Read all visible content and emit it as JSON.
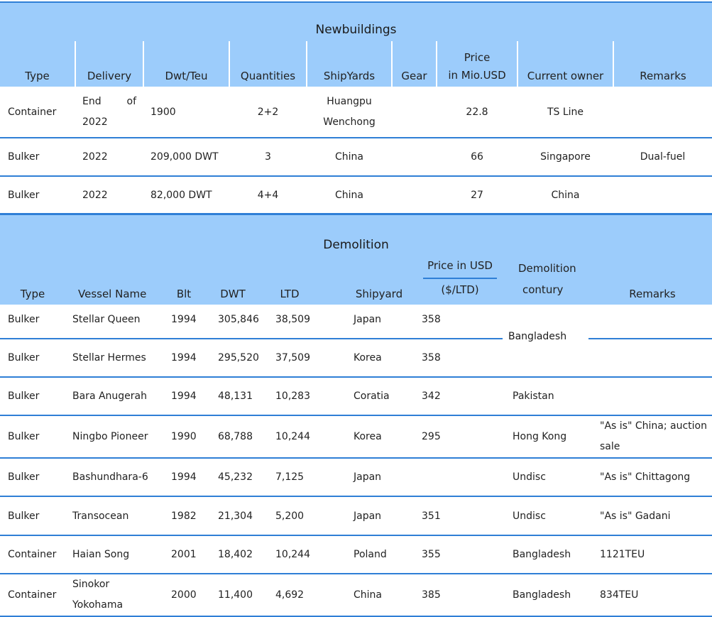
{
  "newbuildings": {
    "title": "Newbuildings",
    "headers": [
      "Type",
      "Delivery",
      "Dwt/Teu",
      "Quantities",
      "ShipYards",
      "Gear",
      "Price",
      "in Mio.USD",
      "Current owner",
      "Remarks"
    ],
    "rows": [
      {
        "type": "Container",
        "delivery_a": "End",
        "delivery_b": "of",
        "delivery_c": "2022",
        "dwt": "1900",
        "qty": "2+2",
        "yard_a": "Huangpu",
        "yard_b": "Wenchong",
        "gear": "",
        "price": "22.8",
        "owner": "TS Line",
        "remarks": ""
      },
      {
        "type": "Bulker",
        "delivery": "2022",
        "dwt": "209,000 DWT",
        "qty": "3",
        "yard": "China",
        "gear": "",
        "price": "66",
        "owner": "Singapore",
        "remarks": "Dual-fuel"
      },
      {
        "type": "Bulker",
        "delivery": "2022",
        "dwt": "82,000 DWT",
        "qty": "4+4",
        "yard": "China",
        "gear": "",
        "price": "27",
        "owner": "China",
        "remarks": ""
      }
    ]
  },
  "demolition": {
    "title": "Demolition",
    "headers": [
      "Type",
      "Vessel Name",
      "Blt",
      "DWT",
      "LTD",
      "Shipyard",
      "Price in USD",
      "($/LTD)",
      "Demolition",
      "contury",
      "Remarks"
    ],
    "merged_country": "Bangladesh",
    "rows": [
      {
        "type": "Bulker",
        "name": "Stellar Queen",
        "blt": "1994",
        "dwt": "305,846",
        "ltd": "38,509",
        "yard": "Japan",
        "price": "358",
        "country": "",
        "remarks": ""
      },
      {
        "type": "Bulker",
        "name": "Stellar Hermes",
        "blt": "1994",
        "dwt": "295,520",
        "ltd": "37,509",
        "yard": "Korea",
        "price": "358",
        "country": "",
        "remarks": ""
      },
      {
        "type": "Bulker",
        "name": "Bara Anugerah",
        "blt": "1994",
        "dwt": "48,131",
        "ltd": "10,283",
        "yard": "Coratia",
        "price": "342",
        "country": "Pakistan",
        "remarks": ""
      },
      {
        "type": "Bulker",
        "name": "Ningbo Pioneer",
        "blt": "1990",
        "dwt": "68,788",
        "ltd": "10,244",
        "yard": "Korea",
        "price": "295",
        "country": "Hong Kong",
        "remarks_a": "\"As is\" China; auction",
        "remarks_b": "sale"
      },
      {
        "type": "Bulker",
        "name": "Bashundhara-6",
        "blt": "1994",
        "dwt": "45,232",
        "ltd": "7,125",
        "yard": "Japan",
        "price": "",
        "country": "Undisc",
        "remarks": "\"As is\" Chittagong"
      },
      {
        "type": "Bulker",
        "name": "Transocean",
        "blt": "1982",
        "dwt": "21,304",
        "ltd": "5,200",
        "yard": "Japan",
        "price": "351",
        "country": "Undisc",
        "remarks": "\"As is\" Gadani"
      },
      {
        "type": "Container",
        "name": "Haian Song",
        "blt": "2001",
        "dwt": "18,402",
        "ltd": "10,244",
        "yard": "Poland",
        "price": "355",
        "country": "Bangladesh",
        "remarks": "1121TEU"
      },
      {
        "type": "Container",
        "name_a": "Sinokor",
        "name_b": "Yokohama",
        "blt": "2000",
        "dwt": "11,400",
        "ltd": "4,692",
        "yard": "China",
        "price": "385",
        "country": "Bangladesh",
        "remarks": "834TEU"
      }
    ]
  }
}
